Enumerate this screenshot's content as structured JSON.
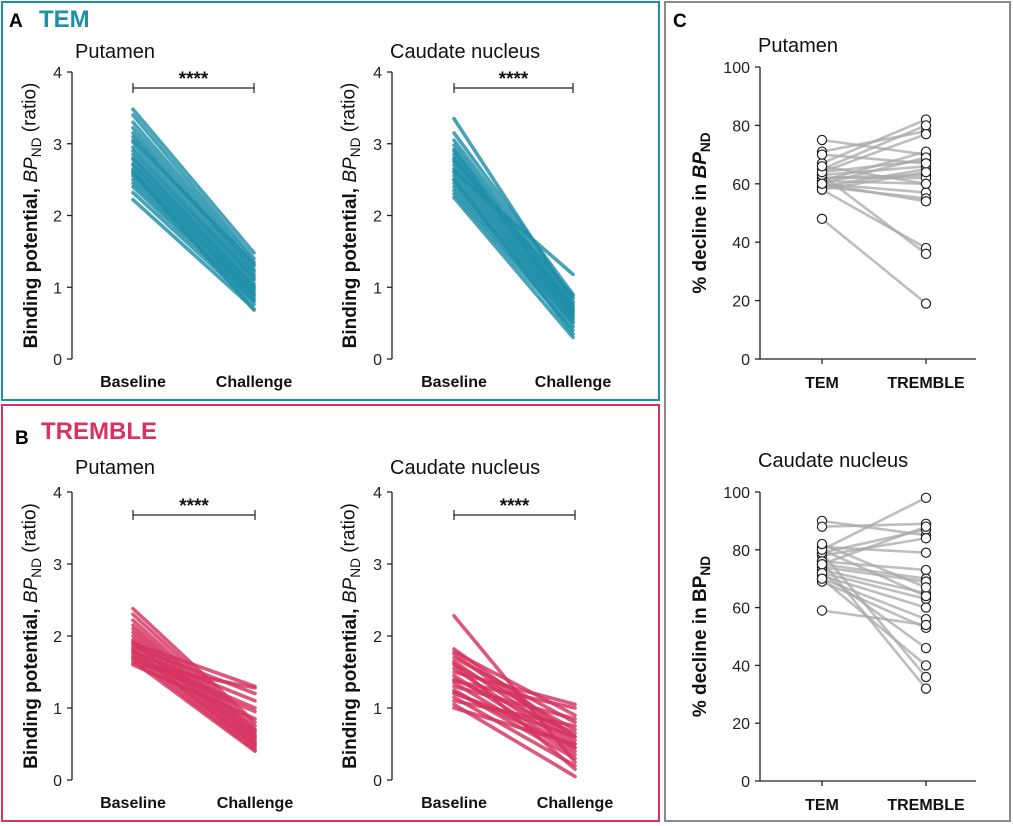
{
  "panels": {
    "A": {
      "letter": "A",
      "group": "TEM",
      "color": "#1f8fa8"
    },
    "B": {
      "letter": "B",
      "group": "TREMBLE",
      "color": "#d6335f"
    },
    "C": {
      "letter": "C",
      "color": "#a8a8a8"
    }
  },
  "chart_data": [
    {
      "id": "A_putamen",
      "type": "line",
      "group": "TEM",
      "title": "Putamen",
      "ylabel": "Binding potential, BP_ND (ratio)",
      "categories": [
        "Baseline",
        "Challenge"
      ],
      "ylim": [
        0,
        4
      ],
      "yticks": [
        0,
        1,
        2,
        3,
        4
      ],
      "significance": "****",
      "series": [
        [
          3.48,
          1.48
        ],
        [
          3.4,
          1.4
        ],
        [
          3.3,
          1.35
        ],
        [
          3.22,
          1.3
        ],
        [
          3.15,
          1.25
        ],
        [
          3.1,
          1.22
        ],
        [
          3.02,
          1.18
        ],
        [
          2.95,
          1.15
        ],
        [
          2.9,
          1.12
        ],
        [
          2.85,
          1.1
        ],
        [
          2.8,
          1.05
        ],
        [
          2.78,
          1.02
        ],
        [
          2.72,
          1.0
        ],
        [
          2.7,
          0.98
        ],
        [
          2.65,
          0.95
        ],
        [
          2.62,
          0.92
        ],
        [
          2.58,
          0.9
        ],
        [
          2.55,
          0.88
        ],
        [
          2.5,
          0.85
        ],
        [
          2.45,
          0.82
        ],
        [
          2.4,
          0.8
        ],
        [
          2.32,
          0.76
        ],
        [
          2.22,
          0.7
        ],
        [
          2.6,
          0.68
        ],
        [
          3.05,
          1.32
        ]
      ]
    },
    {
      "id": "A_caudate",
      "type": "line",
      "group": "TEM",
      "title": "Caudate nucleus",
      "ylabel": "Binding potential, BP_ND (ratio)",
      "categories": [
        "Baseline",
        "Challenge"
      ],
      "ylim": [
        0,
        4
      ],
      "yticks": [
        0,
        1,
        2,
        3,
        4
      ],
      "significance": "****",
      "series": [
        [
          3.35,
          0.8
        ],
        [
          3.15,
          0.9
        ],
        [
          3.05,
          0.85
        ],
        [
          2.98,
          0.78
        ],
        [
          2.92,
          0.75
        ],
        [
          2.85,
          0.72
        ],
        [
          2.8,
          0.7
        ],
        [
          2.75,
          0.68
        ],
        [
          2.7,
          0.66
        ],
        [
          2.65,
          0.62
        ],
        [
          2.6,
          0.6
        ],
        [
          2.55,
          0.58
        ],
        [
          2.5,
          0.55
        ],
        [
          2.45,
          0.52
        ],
        [
          2.4,
          0.5
        ],
        [
          2.35,
          0.45
        ],
        [
          2.3,
          0.4
        ],
        [
          2.25,
          0.3
        ],
        [
          2.62,
          1.18
        ],
        [
          2.78,
          0.88
        ],
        [
          2.5,
          0.35
        ],
        [
          2.9,
          0.65
        ]
      ]
    },
    {
      "id": "B_putamen",
      "type": "line",
      "group": "TREMBLE",
      "title": "Putamen",
      "ylabel": "Binding potential, BP_ND (ratio)",
      "categories": [
        "Baseline",
        "Challenge"
      ],
      "ylim": [
        0,
        4
      ],
      "yticks": [
        0,
        1,
        2,
        3,
        4
      ],
      "significance": "****",
      "series": [
        [
          2.38,
          0.8
        ],
        [
          2.3,
          0.75
        ],
        [
          2.22,
          0.7
        ],
        [
          2.15,
          0.68
        ],
        [
          2.1,
          0.65
        ],
        [
          2.05,
          0.62
        ],
        [
          2.0,
          0.6
        ],
        [
          1.95,
          0.58
        ],
        [
          1.92,
          0.55
        ],
        [
          1.9,
          1.3
        ],
        [
          1.88,
          0.52
        ],
        [
          1.85,
          1.2
        ],
        [
          1.82,
          0.5
        ],
        [
          1.8,
          0.48
        ],
        [
          1.78,
          1.1
        ],
        [
          1.75,
          0.45
        ],
        [
          1.72,
          1.0
        ],
        [
          1.7,
          0.42
        ],
        [
          1.68,
          0.95
        ],
        [
          1.65,
          0.4
        ],
        [
          1.62,
          1.28
        ],
        [
          1.6,
          0.85
        ]
      ]
    },
    {
      "id": "B_caudate",
      "type": "line",
      "group": "TREMBLE",
      "title": "Caudate nucleus",
      "ylabel": "Binding potential, BP_ND (ratio)",
      "categories": [
        "Baseline",
        "Challenge"
      ],
      "ylim": [
        0,
        4
      ],
      "yticks": [
        0,
        1,
        2,
        3,
        4
      ],
      "significance": "****",
      "series": [
        [
          2.28,
          0.25
        ],
        [
          1.82,
          0.6
        ],
        [
          1.78,
          0.9
        ],
        [
          1.75,
          0.55
        ],
        [
          1.7,
          0.8
        ],
        [
          1.65,
          0.5
        ],
        [
          1.6,
          0.7
        ],
        [
          1.55,
          0.45
        ],
        [
          1.5,
          1.05
        ],
        [
          1.45,
          0.4
        ],
        [
          1.4,
          0.65
        ],
        [
          1.35,
          0.35
        ],
        [
          1.3,
          0.85
        ],
        [
          1.25,
          0.3
        ],
        [
          1.2,
          0.6
        ],
        [
          1.15,
          0.2
        ],
        [
          1.1,
          0.75
        ],
        [
          1.05,
          0.05
        ],
        [
          1.0,
          0.5
        ],
        [
          1.38,
          1.0
        ],
        [
          1.62,
          0.15
        ],
        [
          1.22,
          0.45
        ]
      ]
    },
    {
      "id": "C_putamen",
      "type": "scatter-paired",
      "title": "Putamen",
      "ylabel": "% decline in BP_ND",
      "categories": [
        "TEM",
        "TREMBLE"
      ],
      "ylim": [
        0,
        100
      ],
      "yticks": [
        0,
        20,
        40,
        60,
        80,
        100
      ],
      "series": [
        [
          75,
          70
        ],
        [
          71,
          78
        ],
        [
          67,
          82
        ],
        [
          65,
          80
        ],
        [
          64,
          68
        ],
        [
          63,
          66
        ],
        [
          62,
          63
        ],
        [
          62,
          62
        ],
        [
          61,
          60
        ],
        [
          61,
          71
        ],
        [
          60,
          69
        ],
        [
          60,
          57
        ],
        [
          59,
          55
        ],
        [
          59,
          65
        ],
        [
          58,
          64
        ],
        [
          58,
          38
        ],
        [
          63,
          36
        ],
        [
          64,
          77
        ],
        [
          48,
          19
        ],
        [
          66,
          60
        ],
        [
          70,
          67
        ],
        [
          60,
          54
        ]
      ]
    },
    {
      "id": "C_caudate",
      "type": "scatter-paired",
      "title": "Caudate nucleus",
      "ylabel": "% decline in BP_ND",
      "categories": [
        "TEM",
        "TREMBLE"
      ],
      "ylim": [
        0,
        100
      ],
      "yticks": [
        0,
        20,
        40,
        60,
        80,
        100
      ],
      "series": [
        [
          90,
          85
        ],
        [
          88,
          89
        ],
        [
          81,
          79
        ],
        [
          80,
          98
        ],
        [
          79,
          87
        ],
        [
          78,
          84
        ],
        [
          76,
          73
        ],
        [
          75,
          70
        ],
        [
          74,
          69
        ],
        [
          73,
          65
        ],
        [
          72,
          63
        ],
        [
          71,
          60
        ],
        [
          70,
          56
        ],
        [
          69,
          53
        ],
        [
          72,
          46
        ],
        [
          79,
          36
        ],
        [
          76,
          32
        ],
        [
          59,
          54
        ],
        [
          80,
          64
        ],
        [
          82,
          67
        ],
        [
          70,
          40
        ],
        [
          75,
          88
        ]
      ]
    }
  ]
}
